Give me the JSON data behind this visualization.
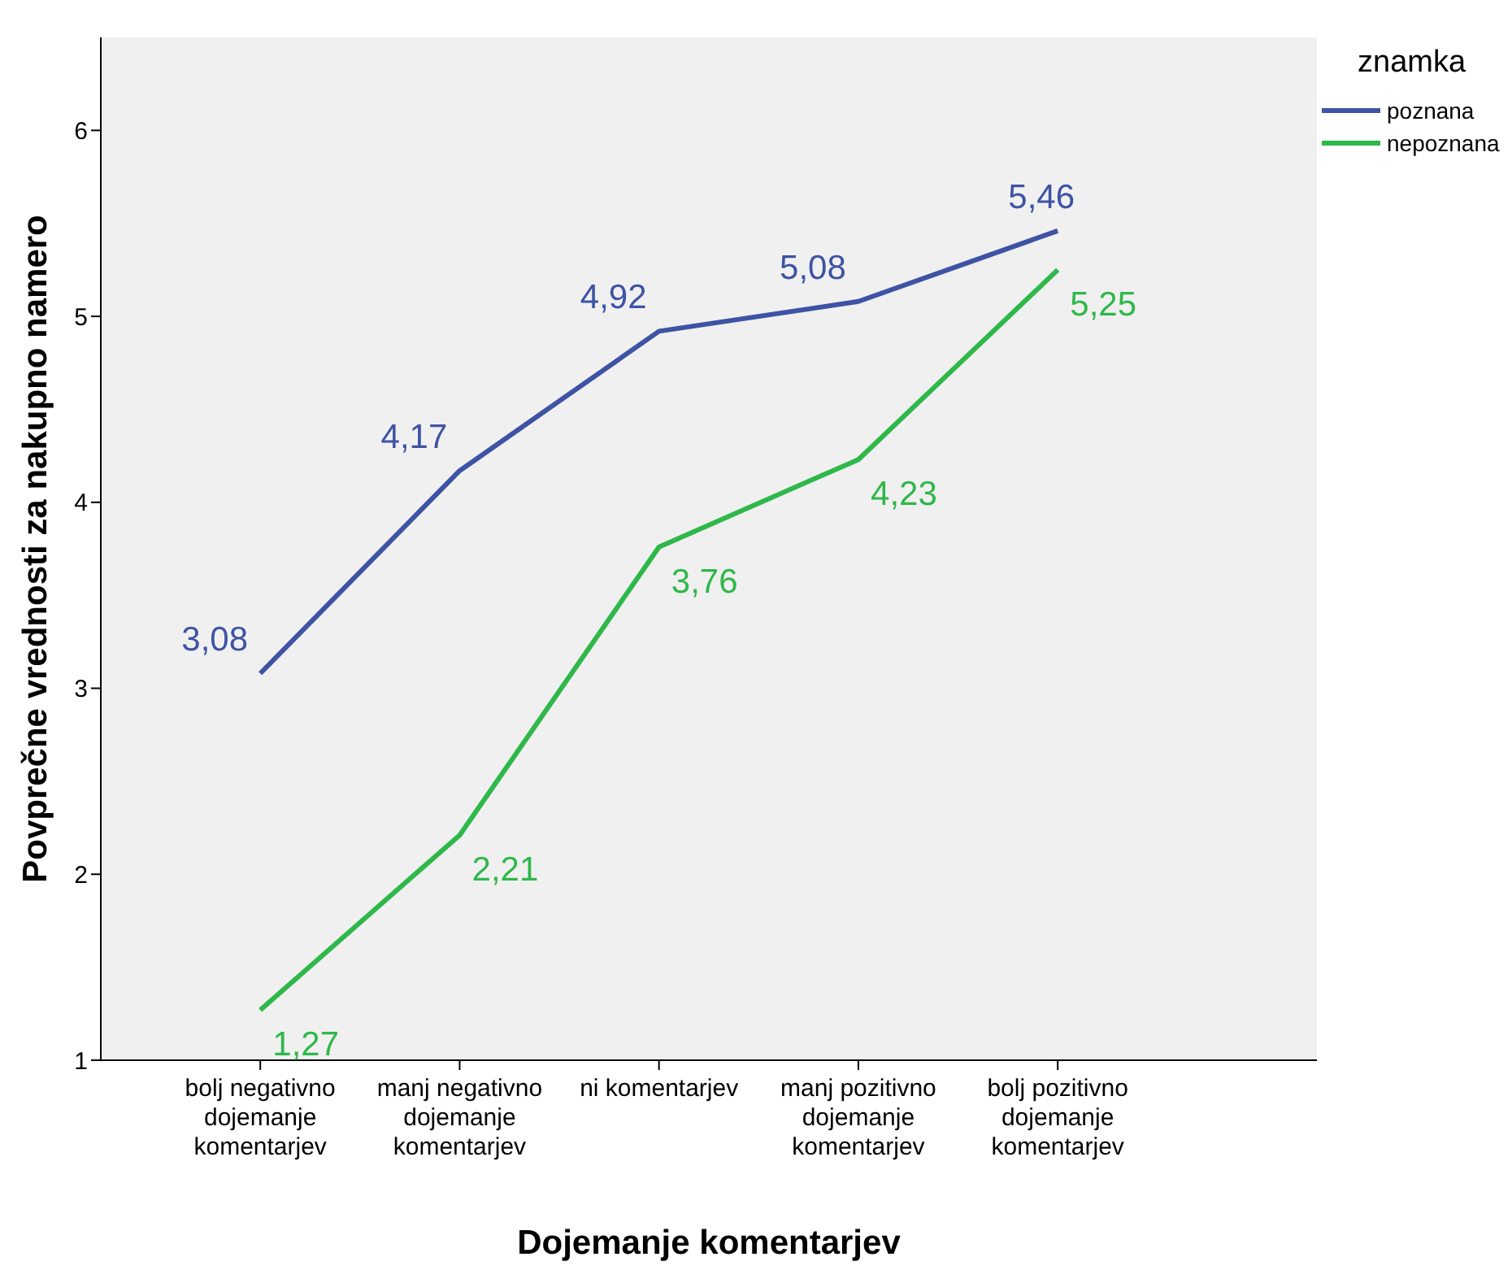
{
  "chart_data": {
    "type": "line",
    "xlabel": "Dojemanje komentarjev",
    "ylabel": "Povprečne vrednosti za nakupno namero",
    "legend_title": "znamka",
    "categories": [
      "bolj negativno dojemanje komentarjev",
      "manj negativno dojemanje komentarjev",
      "ni komentarjev",
      "manj pozitivno dojemanje komentarjev",
      "bolj pozitivno dojemanje komentarjev"
    ],
    "series": [
      {
        "name": "poznana",
        "color": "#3e53a4",
        "values": [
          3.08,
          4.17,
          4.92,
          5.08,
          5.46
        ],
        "value_labels": [
          "3,08",
          "4,17",
          "4,92",
          "5,08",
          "5,46"
        ]
      },
      {
        "name": "nepoznana",
        "color": "#2fb84a",
        "values": [
          1.27,
          2.21,
          3.76,
          4.23,
          5.25
        ],
        "value_labels": [
          "1,27",
          "2,21",
          "3,76",
          "4,23",
          "5,25"
        ]
      }
    ],
    "ylim": [
      1,
      6.5
    ],
    "yticks": [
      1,
      2,
      3,
      4,
      5,
      6
    ],
    "legend": "top right",
    "grid": false,
    "marker": "none",
    "line_style": "solid"
  }
}
